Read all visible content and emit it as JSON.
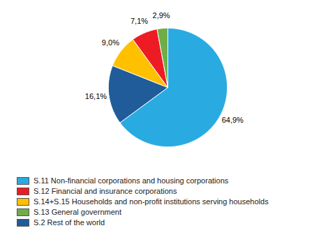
{
  "chart_data": {
    "type": "pie",
    "values": [
      64.9,
      16.1,
      9.0,
      7.1,
      2.9
    ],
    "value_labels": [
      "64,9%",
      "16,1%",
      "9,0%",
      "7,1%",
      "2,9%"
    ],
    "colors": [
      "#29ABE2",
      "#1F5C99",
      "#FFC000",
      "#ED1C24",
      "#70AD47"
    ],
    "data_labels": true,
    "legend": "lower left",
    "legend_labels": [
      "S.11 Non-financial corporations and housing corporations",
      "S.12 Financial and insurance corporations",
      "S.14+S.15 Households and non-profit institutions serving households",
      "S.13 General government",
      "S.2 Rest of the world"
    ],
    "legend_colors": [
      "#29ABE2",
      "#ED1C24",
      "#FFC000",
      "#70AD47",
      "#1F5C99"
    ]
  }
}
